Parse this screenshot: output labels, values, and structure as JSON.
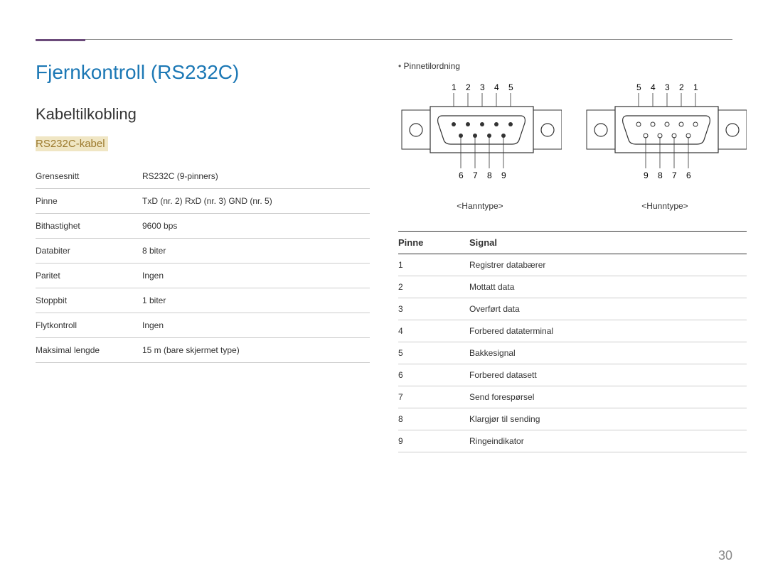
{
  "page": {
    "number": "30"
  },
  "header": {
    "title": "Fjernkontroll (RS232C)",
    "section": "Kabeltilkobling",
    "subsection": "RS232C-kabel"
  },
  "spec_table": {
    "rows": [
      {
        "label": "Grensesnitt",
        "value": "RS232C (9-pinners)"
      },
      {
        "label": "Pinne",
        "value": "TxD (nr. 2) RxD (nr. 3) GND (nr. 5)"
      },
      {
        "label": "Bithastighet",
        "value": "9600 bps"
      },
      {
        "label": "Databiter",
        "value": "8 biter"
      },
      {
        "label": "Paritet",
        "value": "Ingen"
      },
      {
        "label": "Stoppbit",
        "value": "1 biter"
      },
      {
        "label": "Flytkontroll",
        "value": "Ingen"
      },
      {
        "label": "Maksimal lengde",
        "value": "15 m (bare skjermet type)"
      }
    ]
  },
  "connectors": {
    "bullet": "Pinnetilordning",
    "male": {
      "top_labels": "1  2  3  4  5",
      "bottom_labels": "6  7  8  9",
      "type": "<Hanntype>"
    },
    "female": {
      "top_labels": "5  4  3  2  1",
      "bottom_labels": "9  8  7  6",
      "type": "<Hunntype>"
    }
  },
  "pin_signal_table": {
    "headers": {
      "pin": "Pinne",
      "signal": "Signal"
    },
    "rows": [
      {
        "pin": "1",
        "signal": "Registrer databærer"
      },
      {
        "pin": "2",
        "signal": "Mottatt data"
      },
      {
        "pin": "3",
        "signal": "Overført data"
      },
      {
        "pin": "4",
        "signal": "Forbered dataterminal"
      },
      {
        "pin": "5",
        "signal": "Bakkesignal"
      },
      {
        "pin": "6",
        "signal": "Forbered datasett"
      },
      {
        "pin": "7",
        "signal": "Send forespørsel"
      },
      {
        "pin": "8",
        "signal": "Klargjør til sending"
      },
      {
        "pin": "9",
        "signal": "Ringeindikator"
      }
    ]
  },
  "style": {
    "accent_color": "#6b4a7a",
    "title_color": "#1c78b5",
    "sub_title_color": "#9c7a2e",
    "sub_title_bg": "#f0e6c4"
  }
}
